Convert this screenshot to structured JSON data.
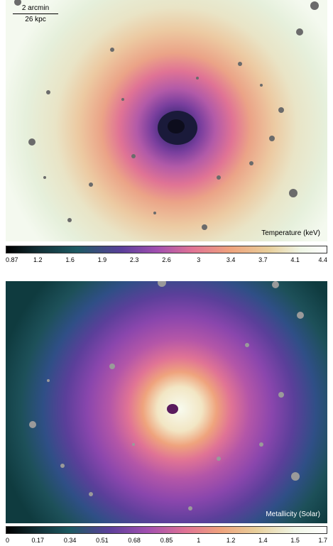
{
  "top_map": {
    "scale_bar": {
      "angular": "2 arcmin",
      "physical": "26 kpc"
    },
    "label": "Temperature (keV)",
    "colorbar_ticks": [
      "0.87",
      "1.2",
      "1.6",
      "1.9",
      "2.3",
      "2.6",
      "3",
      "3.4",
      "3.7",
      "4.1",
      "4.4"
    ],
    "colors": [
      "#e6f0dc",
      "#e9e4c6",
      "#ecc9a1",
      "#eba387",
      "#e07395",
      "#b25aa8",
      "#7a3f9e",
      "#3e2a78",
      "#161c3a"
    ]
  },
  "bottom_map": {
    "label": "Metallicity (Solar)",
    "colorbar_ticks": [
      "0",
      "0.17",
      "0.34",
      "0.51",
      "0.68",
      "0.85",
      "1",
      "1.2",
      "1.4",
      "1.5",
      "1.7"
    ],
    "colors": [
      "#0f3b3f",
      "#1d5059",
      "#2f4f86",
      "#5b3f9a",
      "#8a46ad",
      "#b456a8",
      "#e07395",
      "#efa37d",
      "#f2e6c4",
      "#f8fbef",
      "#5a1b5e"
    ]
  }
}
